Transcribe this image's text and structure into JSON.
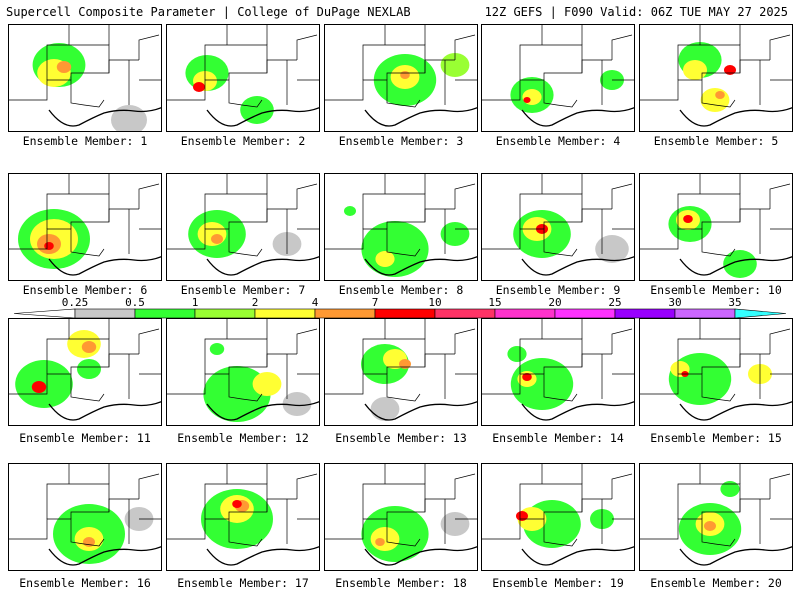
{
  "header": {
    "left": "Supercell Composite Parameter | College of DuPage NEXLAB",
    "right": "12Z GEFS | F090 Valid: 06Z TUE MAY 27 2025"
  },
  "member_label_prefix": "Ensemble Member: ",
  "members": [
    "1",
    "2",
    "3",
    "4",
    "5",
    "6",
    "7",
    "8",
    "9",
    "10",
    "11",
    "12",
    "13",
    "14",
    "15",
    "16",
    "17",
    "18",
    "19",
    "20"
  ],
  "colorbar": {
    "ticks": [
      "0.25",
      "0.5",
      "1",
      "2",
      "4",
      "7",
      "10",
      "15",
      "20",
      "25",
      "30",
      "35"
    ],
    "colors": [
      "#c8c8c8",
      "#33ff33",
      "#99ff33",
      "#ffff33",
      "#ff9933",
      "#ff0000",
      "#ff3366",
      "#ff33cc",
      "#ff33ff",
      "#9900ff",
      "#cc66ff",
      "#33ffff"
    ]
  },
  "palette": {
    "light": "#c8c8c8",
    "green": "#33ff33",
    "lime": "#99ff33",
    "yellow": "#ffff33",
    "orange": "#ff9933",
    "red": "#ff0000"
  },
  "map_data": [
    [
      [
        50,
        40,
        22,
        "green"
      ],
      [
        45,
        48,
        14,
        "yellow"
      ],
      [
        55,
        42,
        6,
        "orange"
      ],
      [
        120,
        95,
        15,
        "light"
      ]
    ],
    [
      [
        40,
        48,
        18,
        "green"
      ],
      [
        38,
        56,
        10,
        "yellow"
      ],
      [
        32,
        62,
        5,
        "red"
      ],
      [
        90,
        85,
        14,
        "green"
      ]
    ],
    [
      [
        80,
        55,
        26,
        "green"
      ],
      [
        80,
        52,
        12,
        "yellow"
      ],
      [
        80,
        50,
        4,
        "orange"
      ],
      [
        130,
        40,
        12,
        "lime"
      ]
    ],
    [
      [
        50,
        70,
        18,
        "green"
      ],
      [
        50,
        72,
        8,
        "yellow"
      ],
      [
        45,
        75,
        3,
        "red"
      ],
      [
        130,
        55,
        10,
        "green"
      ]
    ],
    [
      [
        60,
        35,
        18,
        "green"
      ],
      [
        55,
        45,
        10,
        "yellow"
      ],
      [
        90,
        45,
        5,
        "red"
      ],
      [
        75,
        75,
        12,
        "yellow"
      ],
      [
        80,
        70,
        4,
        "orange"
      ]
    ],
    [
      [
        45,
        65,
        30,
        "green"
      ],
      [
        45,
        65,
        20,
        "yellow"
      ],
      [
        40,
        70,
        10,
        "orange"
      ],
      [
        40,
        72,
        4,
        "red"
      ]
    ],
    [
      [
        50,
        60,
        24,
        "green"
      ],
      [
        45,
        60,
        12,
        "yellow"
      ],
      [
        50,
        65,
        5,
        "orange"
      ],
      [
        120,
        70,
        12,
        "light"
      ]
    ],
    [
      [
        70,
        75,
        28,
        "green"
      ],
      [
        60,
        85,
        8,
        "yellow"
      ],
      [
        130,
        60,
        12,
        "green"
      ],
      [
        25,
        37,
        5,
        "green"
      ]
    ],
    [
      [
        60,
        60,
        24,
        "green"
      ],
      [
        55,
        55,
        12,
        "yellow"
      ],
      [
        60,
        55,
        5,
        "red"
      ],
      [
        130,
        75,
        14,
        "light"
      ]
    ],
    [
      [
        50,
        50,
        18,
        "green"
      ],
      [
        48,
        46,
        10,
        "yellow"
      ],
      [
        48,
        45,
        4,
        "red"
      ],
      [
        100,
        90,
        14,
        "green"
      ]
    ],
    [
      [
        35,
        65,
        24,
        "green"
      ],
      [
        75,
        25,
        14,
        "yellow"
      ],
      [
        80,
        28,
        6,
        "orange"
      ],
      [
        30,
        68,
        6,
        "red"
      ],
      [
        80,
        50,
        10,
        "green"
      ]
    ],
    [
      [
        70,
        75,
        28,
        "green"
      ],
      [
        100,
        65,
        12,
        "yellow"
      ],
      [
        50,
        30,
        6,
        "green"
      ],
      [
        130,
        85,
        12,
        "light"
      ]
    ],
    [
      [
        60,
        45,
        20,
        "green"
      ],
      [
        70,
        40,
        10,
        "yellow"
      ],
      [
        80,
        45,
        5,
        "orange"
      ],
      [
        60,
        90,
        12,
        "light"
      ]
    ],
    [
      [
        60,
        65,
        26,
        "green"
      ],
      [
        45,
        60,
        8,
        "yellow"
      ],
      [
        45,
        58,
        4,
        "red"
      ],
      [
        35,
        35,
        8,
        "green"
      ]
    ],
    [
      [
        60,
        60,
        26,
        "green"
      ],
      [
        40,
        50,
        8,
        "yellow"
      ],
      [
        45,
        55,
        3,
        "red"
      ],
      [
        120,
        55,
        10,
        "yellow"
      ]
    ],
    [
      [
        80,
        70,
        30,
        "green"
      ],
      [
        80,
        75,
        12,
        "yellow"
      ],
      [
        80,
        78,
        5,
        "orange"
      ],
      [
        130,
        55,
        12,
        "light"
      ]
    ],
    [
      [
        70,
        55,
        30,
        "green"
      ],
      [
        70,
        45,
        14,
        "yellow"
      ],
      [
        75,
        42,
        6,
        "orange"
      ],
      [
        70,
        40,
        4,
        "red"
      ]
    ],
    [
      [
        70,
        70,
        28,
        "green"
      ],
      [
        60,
        75,
        12,
        "yellow"
      ],
      [
        55,
        78,
        4,
        "orange"
      ],
      [
        130,
        60,
        12,
        "light"
      ]
    ],
    [
      [
        70,
        60,
        24,
        "green"
      ],
      [
        50,
        55,
        12,
        "yellow"
      ],
      [
        40,
        52,
        5,
        "red"
      ],
      [
        120,
        55,
        10,
        "green"
      ]
    ],
    [
      [
        70,
        65,
        26,
        "green"
      ],
      [
        70,
        60,
        12,
        "yellow"
      ],
      [
        70,
        62,
        5,
        "orange"
      ],
      [
        90,
        25,
        8,
        "green"
      ]
    ]
  ]
}
